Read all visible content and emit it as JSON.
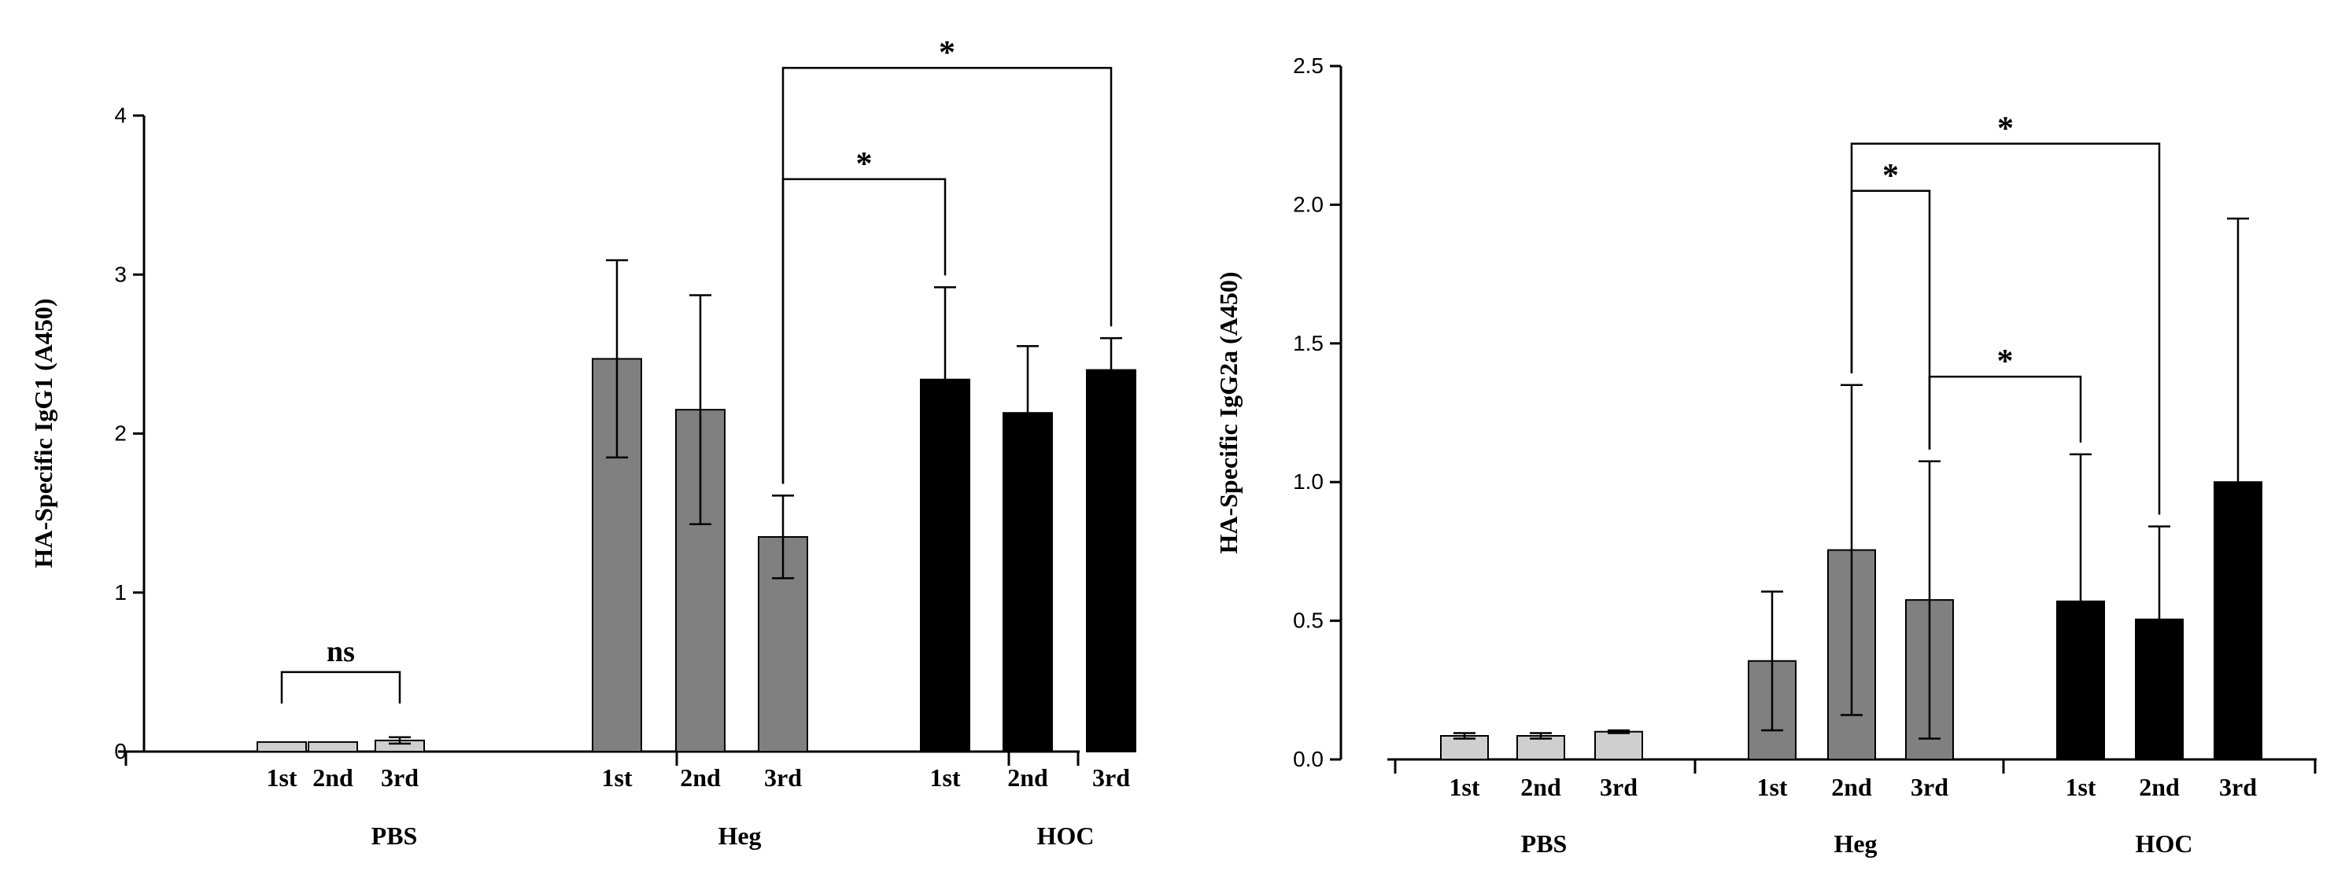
{
  "chart_data": [
    {
      "type": "bar",
      "ylabel": "HA-Specific IgG1 (A450)",
      "ylim": [
        0,
        4
      ],
      "yticks": [
        "0",
        "1",
        "2",
        "3",
        "4"
      ],
      "groups": [
        "PBS",
        "Heg",
        "HOC"
      ],
      "series": [
        {
          "name": "PBS",
          "color": "#cfcfcf",
          "categories": [
            "1st",
            "2nd",
            "3rd"
          ],
          "values": [
            0.06,
            0.06,
            0.07
          ],
          "errors": [
            0,
            0,
            0.02
          ]
        },
        {
          "name": "Heg",
          "color": "#808080",
          "categories": [
            "1st",
            "2nd",
            "3rd"
          ],
          "values": [
            2.47,
            2.15,
            1.35
          ],
          "errors": [
            0.62,
            0.72,
            0.26
          ]
        },
        {
          "name": "HOC",
          "color": "#000000",
          "categories": [
            "1st",
            "2nd",
            "3rd"
          ],
          "values": [
            2.34,
            2.13,
            2.4
          ],
          "errors": [
            0.58,
            0.42,
            0.2
          ]
        }
      ],
      "annotations": [
        {
          "label": "ns",
          "from": [
            0,
            0
          ],
          "to": [
            0,
            2
          ],
          "y": 0.5
        },
        {
          "label": "*",
          "from": [
            1,
            2
          ],
          "to": [
            2,
            0
          ],
          "y": 3.6
        },
        {
          "label": "*",
          "from": [
            1,
            2
          ],
          "to": [
            2,
            2
          ],
          "y": 4.3
        }
      ]
    },
    {
      "type": "bar",
      "ylabel": "HA-Specific IgG2a (A450)",
      "ylim": [
        0,
        2.5
      ],
      "yticks": [
        "0.0",
        "0.5",
        "1.0",
        "1.5",
        "2.0",
        "2.5"
      ],
      "groups": [
        "PBS",
        "Heg",
        "HOC"
      ],
      "series": [
        {
          "name": "PBS",
          "color": "#cfcfcf",
          "categories": [
            "1st",
            "2nd",
            "3rd"
          ],
          "values": [
            0.085,
            0.085,
            0.1
          ],
          "errors": [
            0.01,
            0.01,
            0.005
          ]
        },
        {
          "name": "Heg",
          "color": "#808080",
          "categories": [
            "1st",
            "2nd",
            "3rd"
          ],
          "values": [
            0.355,
            0.755,
            0.575
          ],
          "errors": [
            0.25,
            0.595,
            0.5
          ]
        },
        {
          "name": "HOC",
          "color": "#000000",
          "categories": [
            "1st",
            "2nd",
            "3rd"
          ],
          "values": [
            0.57,
            0.505,
            1.0
          ],
          "errors": [
            0.53,
            0.335,
            0.95
          ]
        }
      ],
      "annotations": [
        {
          "label": "*",
          "from": [
            1,
            1
          ],
          "to": [
            1,
            2
          ],
          "y": 2.05
        },
        {
          "label": "*",
          "from": [
            1,
            1
          ],
          "to": [
            2,
            1
          ],
          "y": 2.22
        },
        {
          "label": "*",
          "from": [
            1,
            2
          ],
          "to": [
            2,
            0
          ],
          "y": 1.38
        }
      ]
    }
  ]
}
